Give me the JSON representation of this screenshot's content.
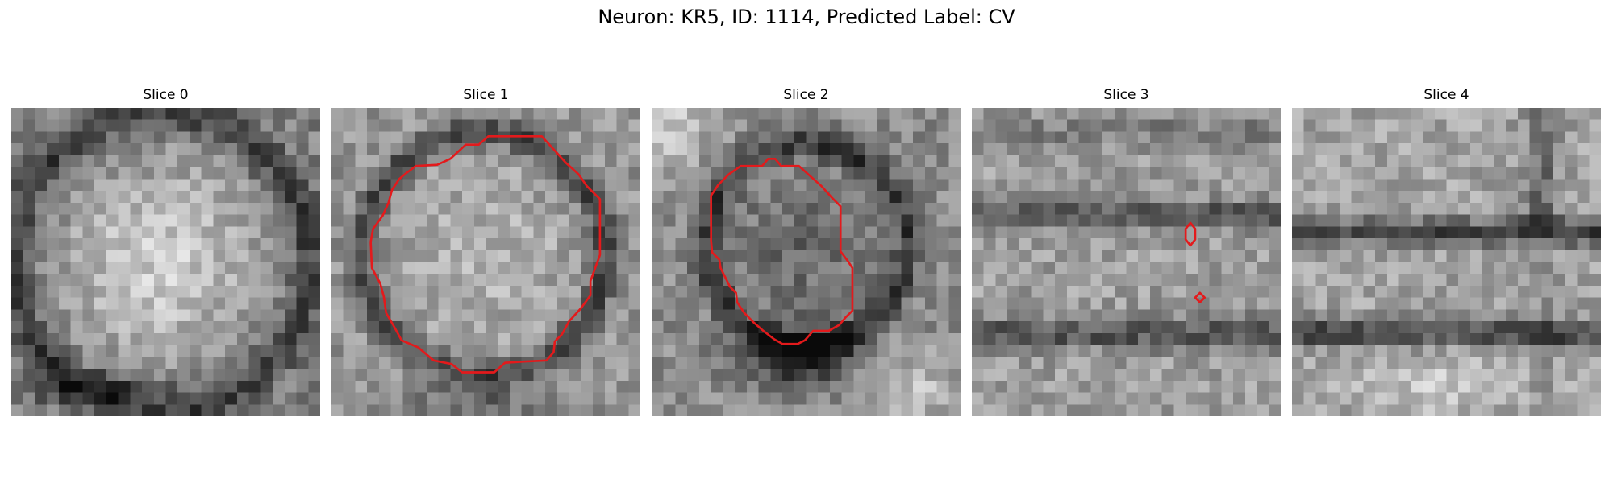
{
  "figure": {
    "title": "Neuron: KR5, ID: 1114, Predicted Label: CV",
    "contour_color": "#e31a1c"
  },
  "panels": [
    {
      "title": "Slice 0",
      "has_contour": false
    },
    {
      "title": "Slice 1",
      "has_contour": true
    },
    {
      "title": "Slice 2",
      "has_contour": true
    },
    {
      "title": "Slice 3",
      "has_contour": true
    },
    {
      "title": "Slice 4",
      "has_contour": false
    }
  ]
}
